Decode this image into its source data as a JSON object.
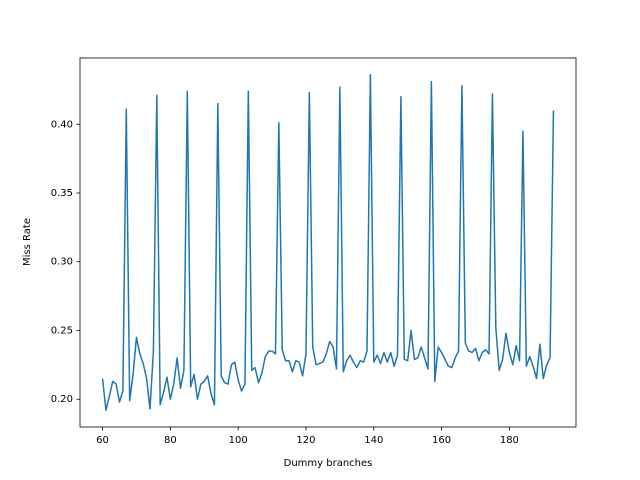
{
  "chart_data": {
    "type": "line",
    "x_label": "Dummy branches",
    "y_label": "Miss Rate",
    "x": [
      60,
      61,
      62,
      63,
      64,
      65,
      66,
      67,
      68,
      69,
      70,
      71,
      72,
      73,
      74,
      75,
      76,
      77,
      78,
      79,
      80,
      81,
      82,
      83,
      84,
      85,
      86,
      87,
      88,
      89,
      90,
      91,
      92,
      93,
      94,
      95,
      96,
      97,
      98,
      99,
      100,
      101,
      102,
      103,
      104,
      105,
      106,
      107,
      108,
      109,
      110,
      111,
      112,
      113,
      114,
      115,
      116,
      117,
      118,
      119,
      120,
      121,
      122,
      123,
      124,
      125,
      126,
      127,
      128,
      129,
      130,
      131,
      132,
      133,
      134,
      135,
      136,
      137,
      138,
      139,
      140,
      141,
      142,
      143,
      144,
      145,
      146,
      147,
      148,
      149,
      150,
      151,
      152,
      153,
      154,
      155,
      156,
      157,
      158,
      159,
      160,
      161,
      162,
      163,
      164,
      165,
      166,
      167,
      168,
      169,
      170,
      171,
      172,
      173,
      174,
      175,
      176,
      177,
      178,
      179,
      180,
      181,
      182,
      183,
      184,
      185,
      186,
      187,
      188,
      189,
      190,
      191,
      192,
      193
    ],
    "series": [
      {
        "color": "#1f77b4",
        "values": [
          0.215,
          0.192,
          0.202,
          0.213,
          0.211,
          0.198,
          0.206,
          0.411,
          0.199,
          0.218,
          0.245,
          0.233,
          0.226,
          0.215,
          0.193,
          0.235,
          0.421,
          0.196,
          0.205,
          0.216,
          0.2,
          0.211,
          0.23,
          0.208,
          0.221,
          0.424,
          0.209,
          0.218,
          0.2,
          0.211,
          0.213,
          0.217,
          0.204,
          0.196,
          0.415,
          0.217,
          0.212,
          0.211,
          0.225,
          0.227,
          0.214,
          0.206,
          0.211,
          0.424,
          0.221,
          0.223,
          0.212,
          0.219,
          0.231,
          0.235,
          0.235,
          0.233,
          0.401,
          0.236,
          0.228,
          0.228,
          0.22,
          0.228,
          0.227,
          0.217,
          0.233,
          0.423,
          0.238,
          0.225,
          0.226,
          0.227,
          0.233,
          0.242,
          0.238,
          0.222,
          0.427,
          0.22,
          0.228,
          0.232,
          0.227,
          0.223,
          0.228,
          0.227,
          0.235,
          0.436,
          0.227,
          0.232,
          0.226,
          0.234,
          0.227,
          0.234,
          0.224,
          0.232,
          0.42,
          0.229,
          0.228,
          0.25,
          0.229,
          0.23,
          0.238,
          0.23,
          0.222,
          0.431,
          0.213,
          0.238,
          0.234,
          0.229,
          0.224,
          0.223,
          0.23,
          0.235,
          0.428,
          0.241,
          0.235,
          0.234,
          0.237,
          0.228,
          0.234,
          0.236,
          0.233,
          0.422,
          0.252,
          0.221,
          0.229,
          0.248,
          0.234,
          0.225,
          0.239,
          0.228,
          0.395,
          0.224,
          0.231,
          0.224,
          0.215,
          0.24,
          0.215,
          0.225,
          0.23,
          0.41
        ]
      }
    ],
    "xlim": [
      53.35,
      199.65
    ],
    "ylim": [
      0.1798,
      0.4482
    ],
    "xticks": [
      60,
      80,
      100,
      120,
      140,
      160,
      180
    ],
    "yticks": [
      {
        "value": 0.2,
        "label": "0.20"
      },
      0.25,
      {
        "value": 0.3,
        "label": "0.30"
      },
      0.35,
      {
        "value": 0.4,
        "label": "0.40"
      }
    ],
    "grid": false
  }
}
